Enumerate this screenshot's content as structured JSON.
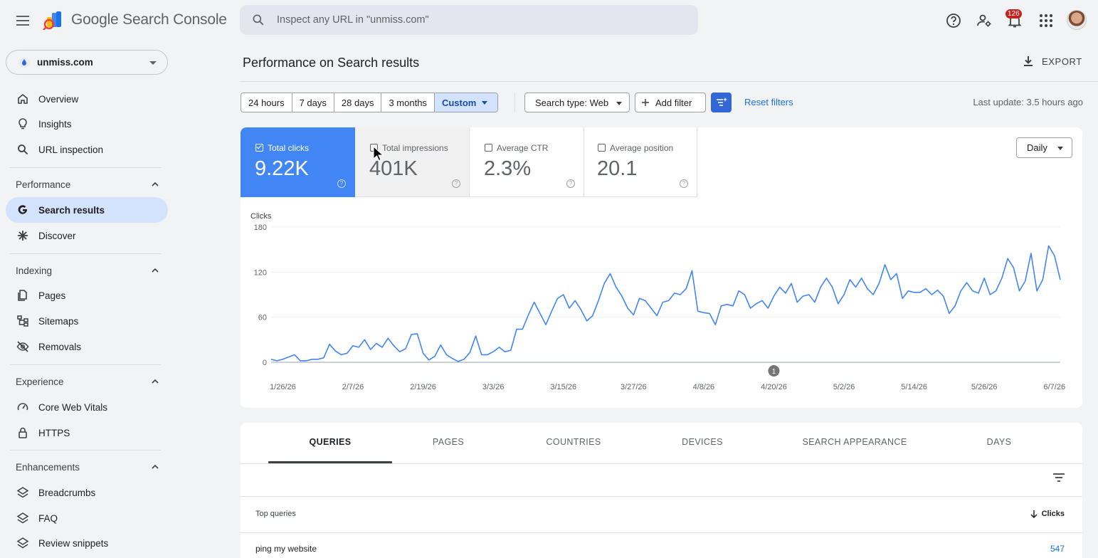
{
  "header": {
    "app_title": "Google Search Console",
    "search_placeholder": "Inspect any URL in \"unmiss.com\"",
    "notification_count": "126",
    "icons": [
      "menu-icon",
      "help-icon",
      "manage-users-icon",
      "bell-icon",
      "apps-grid-icon",
      "avatar"
    ]
  },
  "sidebar": {
    "property": "unmiss.com",
    "top_items": [
      {
        "label": "Overview",
        "icon": "home-icon"
      },
      {
        "label": "Insights",
        "icon": "lightbulb-icon"
      },
      {
        "label": "URL inspection",
        "icon": "search-icon"
      }
    ],
    "sections": [
      {
        "title": "Performance",
        "items": [
          {
            "label": "Search results",
            "icon": "google-g-icon",
            "active": true
          },
          {
            "label": "Discover",
            "icon": "asterisk-icon"
          }
        ]
      },
      {
        "title": "Indexing",
        "items": [
          {
            "label": "Pages",
            "icon": "pages-icon"
          },
          {
            "label": "Sitemaps",
            "icon": "sitemap-icon"
          },
          {
            "label": "Removals",
            "icon": "eye-off-icon"
          }
        ]
      },
      {
        "title": "Experience",
        "items": [
          {
            "label": "Core Web Vitals",
            "icon": "gauge-icon"
          },
          {
            "label": "HTTPS",
            "icon": "lock-icon"
          }
        ]
      },
      {
        "title": "Enhancements",
        "items": [
          {
            "label": "Breadcrumbs",
            "icon": "layers-icon"
          },
          {
            "label": "FAQ",
            "icon": "layers-icon"
          },
          {
            "label": "Review snippets",
            "icon": "layers-icon"
          }
        ]
      }
    ]
  },
  "main": {
    "title": "Performance on Search results",
    "export_label": "EXPORT",
    "date_ranges": [
      "24 hours",
      "7 days",
      "28 days",
      "3 months",
      "Custom"
    ],
    "active_range": "Custom",
    "search_type": "Search type: Web",
    "add_filter": "Add filter",
    "reset_filters": "Reset filters",
    "last_update": "Last update: 3.5 hours ago",
    "granularity": "Daily",
    "metrics": [
      {
        "label": "Total clicks",
        "value": "9.22K",
        "checked": true
      },
      {
        "label": "Total impressions",
        "value": "401K",
        "checked": false
      },
      {
        "label": "Average CTR",
        "value": "2.3%",
        "checked": false
      },
      {
        "label": "Average position",
        "value": "20.1",
        "checked": false
      }
    ],
    "annotation_marker": "1"
  },
  "chart_data": {
    "type": "line",
    "ylabel": "Clicks",
    "ylim": [
      0,
      180
    ],
    "yticks": [
      0,
      60,
      120,
      180
    ],
    "xticks": [
      "1/26/26",
      "2/7/26",
      "2/19/26",
      "3/3/26",
      "3/15/26",
      "3/27/26",
      "4/8/26",
      "4/20/26",
      "5/2/26",
      "5/14/26",
      "5/26/26",
      "6/7/26"
    ],
    "start_date": "1/24/26",
    "series": [
      {
        "name": "Clicks",
        "color": "#4285f4",
        "values": [
          4,
          2,
          4,
          7,
          10,
          2,
          2,
          4,
          4,
          6,
          24,
          15,
          10,
          12,
          22,
          20,
          30,
          17,
          25,
          20,
          32,
          22,
          14,
          18,
          37,
          38,
          12,
          3,
          8,
          23,
          10,
          5,
          1,
          4,
          13,
          35,
          10,
          10,
          14,
          20,
          14,
          16,
          44,
          44,
          63,
          80,
          65,
          50,
          68,
          85,
          90,
          72,
          82,
          70,
          55,
          62,
          82,
          105,
          118,
          100,
          88,
          72,
          63,
          85,
          82,
          72,
          62,
          80,
          82,
          92,
          90,
          98,
          122,
          68,
          66,
          65,
          50,
          75,
          77,
          75,
          95,
          90,
          72,
          78,
          82,
          72,
          88,
          100,
          92,
          105,
          80,
          88,
          90,
          80,
          100,
          112,
          100,
          78,
          90,
          110,
          100,
          112,
          98,
          90,
          105,
          130,
          110,
          118,
          85,
          95,
          93,
          93,
          98,
          90,
          96,
          88,
          65,
          75,
          95,
          106,
          95,
          92,
          112,
          90,
          95,
          112,
          138,
          126,
          95,
          108,
          145,
          95,
          110,
          155,
          142,
          110
        ]
      }
    ]
  },
  "table": {
    "tabs": [
      "QUERIES",
      "PAGES",
      "COUNTRIES",
      "DEVICES",
      "SEARCH APPEARANCE",
      "DAYS"
    ],
    "active_tab": "QUERIES",
    "col_query": "Top queries",
    "col_clicks": "Clicks",
    "rows": [
      {
        "query": "ping my website",
        "clicks": "547"
      }
    ]
  }
}
